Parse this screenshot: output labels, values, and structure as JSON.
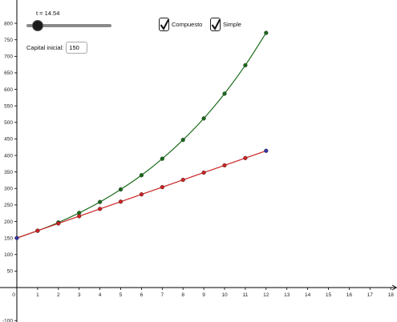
{
  "slider": {
    "label": "t = 14.54",
    "value": 14.54,
    "min": 0,
    "max": 60
  },
  "checkboxes": {
    "compuesto": {
      "label": "Compuesto",
      "checked": true
    },
    "simple": {
      "label": "Simple",
      "checked": true
    }
  },
  "capital": {
    "label": "Capital inicial:",
    "value": "150"
  },
  "colors": {
    "compuesto": "#1a6b1a",
    "simple": "#cc2222",
    "axis": "#000000",
    "endpoint": "#3333aa"
  },
  "chart_data": {
    "type": "line",
    "xlim": [
      0,
      18
    ],
    "ylim": [
      -100,
      800
    ],
    "x_ticks": [
      0,
      1,
      2,
      3,
      4,
      5,
      6,
      7,
      8,
      9,
      10,
      11,
      12,
      13,
      14,
      15,
      16,
      17,
      18
    ],
    "y_ticks": [
      -100,
      50,
      100,
      150,
      200,
      250,
      300,
      350,
      400,
      450,
      500,
      550,
      600,
      650,
      700,
      750,
      800
    ],
    "series": [
      {
        "name": "Compuesto",
        "x": [
          0,
          1,
          2,
          3,
          4,
          5,
          6,
          7,
          8,
          9,
          10,
          11,
          12
        ],
        "y": [
          150,
          172,
          197,
          226,
          259,
          297,
          340,
          390,
          447,
          512,
          587,
          673,
          771
        ]
      },
      {
        "name": "Simple",
        "x": [
          0,
          1,
          2,
          3,
          4,
          5,
          6,
          7,
          8,
          9,
          10,
          11,
          12
        ],
        "y": [
          150,
          172,
          194,
          216,
          238,
          260,
          282,
          304,
          326,
          348,
          370,
          392,
          414
        ]
      }
    ],
    "grid": false
  }
}
